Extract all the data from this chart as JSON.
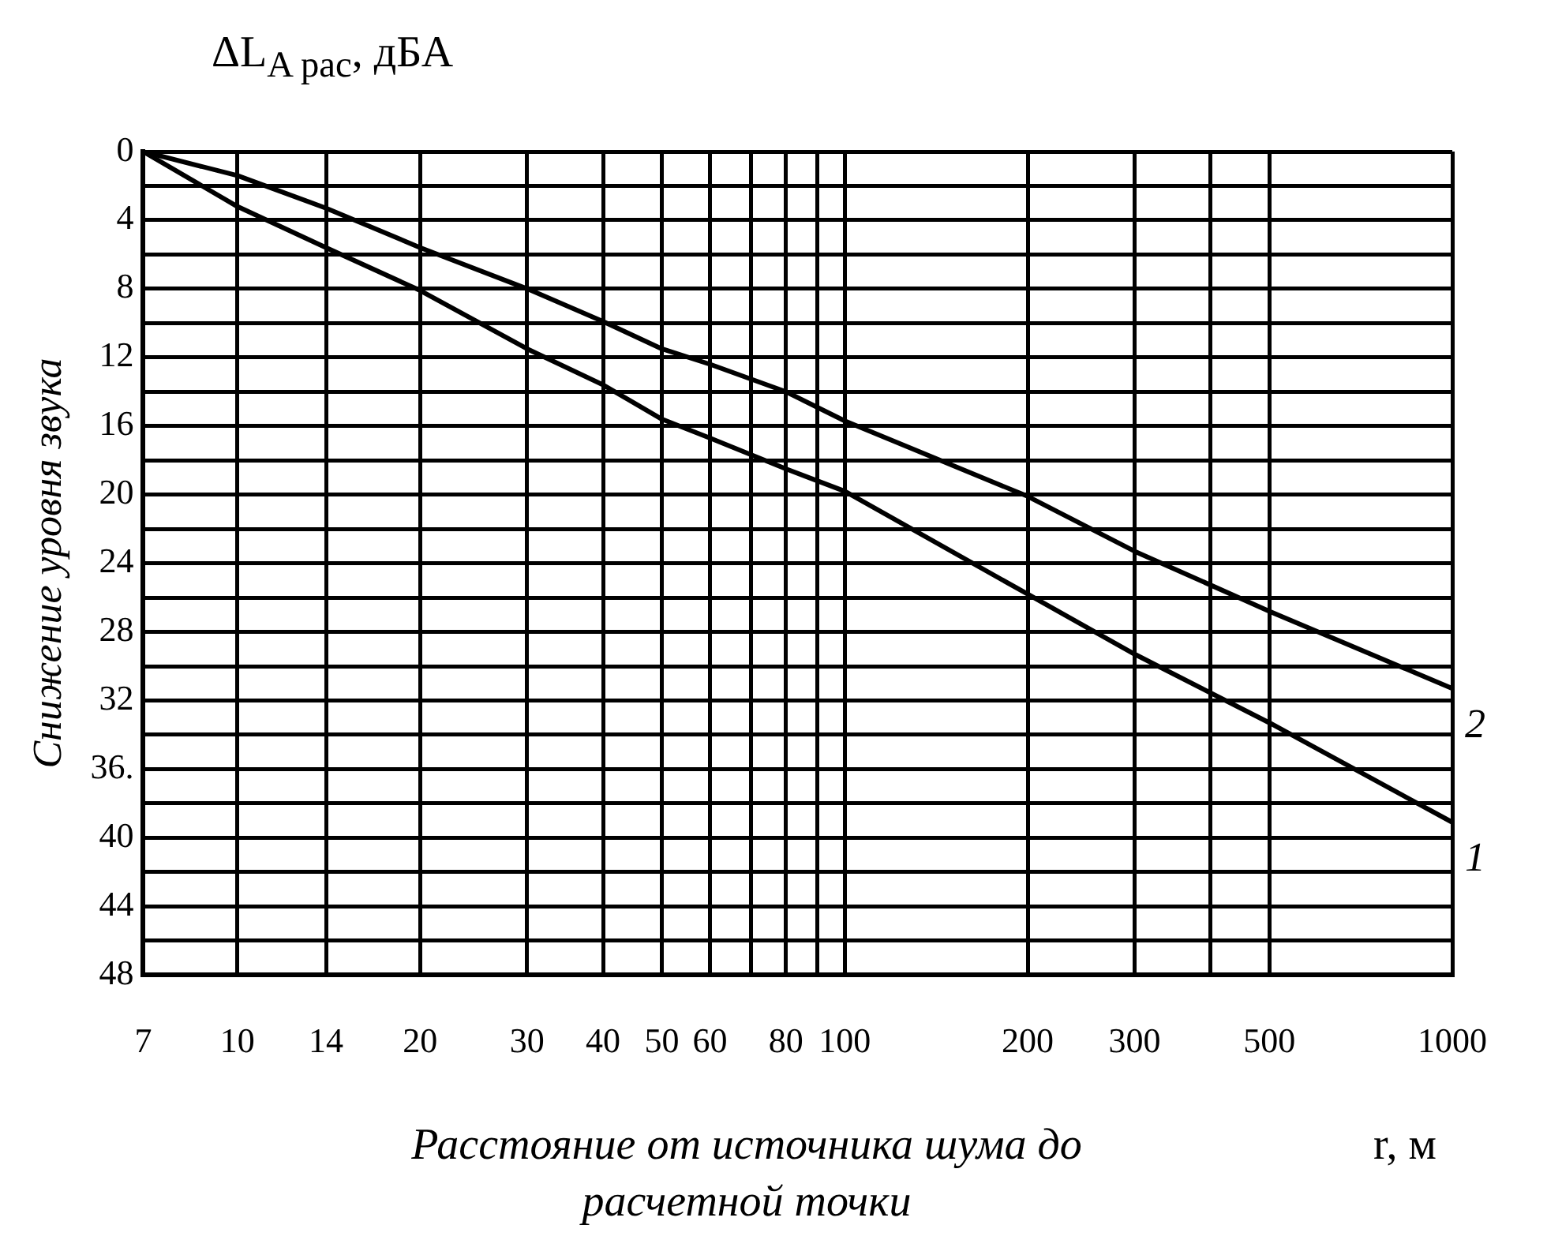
{
  "chart_data": {
    "type": "line",
    "ylabel": "Снижение уровня звука",
    "xlabel": "Расстояние от источника шума до расчетной точки",
    "annotations": [
      "ΔL$_{A рас}$,  дБА",
      "r, м"
    ],
    "log": "x",
    "xlim": [
      7,
      1000
    ],
    "ylim": [
      48,
      0
    ],
    "xticks": [
      7,
      10,
      14,
      20,
      30,
      40,
      50,
      60,
      {
        "value": 70,
        "label": null
      },
      80,
      {
        "value": 90,
        "label": null
      },
      100,
      200,
      300,
      {
        "value": 400,
        "label": null
      },
      500,
      1000
    ],
    "yticks": [
      0,
      {
        "value": 2,
        "label": null
      },
      4,
      {
        "value": 6,
        "label": null
      },
      8,
      {
        "value": 10,
        "label": null
      },
      12,
      {
        "value": 14,
        "label": null
      },
      16,
      {
        "value": 18,
        "label": null
      },
      20,
      {
        "value": 22,
        "label": null
      },
      24,
      {
        "value": 26,
        "label": null
      },
      28,
      {
        "value": 30,
        "label": null
      },
      32,
      {
        "value": 34,
        "label": null
      },
      {
        "value": 36,
        "label": "36."
      },
      {
        "value": 38,
        "label": null
      },
      40,
      {
        "value": 42,
        "label": null
      },
      44,
      {
        "value": 46,
        "label": null
      },
      48
    ],
    "grid": true,
    "legend": false,
    "marker": "none",
    "line_style": "solid",
    "x": [
      7,
      10,
      14,
      20,
      30,
      40,
      50,
      60,
      80,
      100,
      200,
      300,
      500,
      1000
    ],
    "series": [
      {
        "name": "1",
        "color": "#000000",
        "values": [
          0,
          3.2,
          5.6,
          8.1,
          11.5,
          13.6,
          15.6,
          16.7,
          18.5,
          19.8,
          25.8,
          29.3,
          33.3,
          39.1
        ]
      },
      {
        "name": "2",
        "color": "#000000",
        "values": [
          0,
          1.4,
          3.3,
          5.6,
          8.0,
          9.9,
          11.5,
          12.4,
          14.0,
          15.7,
          20.1,
          23.3,
          26.8,
          31.3
        ]
      }
    ]
  }
}
